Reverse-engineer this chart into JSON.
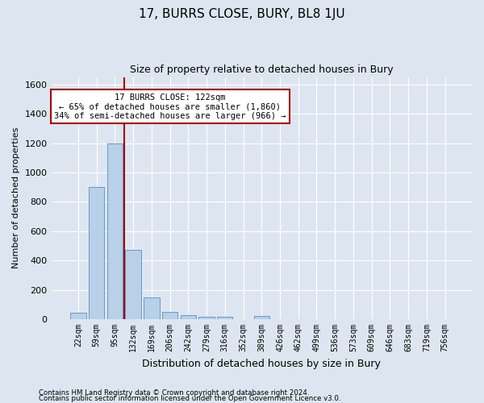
{
  "title": "17, BURRS CLOSE, BURY, BL8 1JU",
  "subtitle": "Size of property relative to detached houses in Bury",
  "xlabel": "Distribution of detached houses by size in Bury",
  "ylabel": "Number of detached properties",
  "footer_line1": "Contains HM Land Registry data © Crown copyright and database right 2024.",
  "footer_line2": "Contains public sector information licensed under the Open Government Licence v3.0.",
  "categories": [
    "22sqm",
    "59sqm",
    "95sqm",
    "132sqm",
    "169sqm",
    "206sqm",
    "242sqm",
    "279sqm",
    "316sqm",
    "352sqm",
    "389sqm",
    "426sqm",
    "462sqm",
    "499sqm",
    "536sqm",
    "573sqm",
    "609sqm",
    "646sqm",
    "683sqm",
    "719sqm",
    "756sqm"
  ],
  "values": [
    45,
    900,
    1200,
    470,
    150,
    48,
    30,
    15,
    18,
    0,
    20,
    0,
    0,
    0,
    0,
    0,
    0,
    0,
    0,
    0,
    0
  ],
  "bar_color": "#b8d0e8",
  "bar_edge_color": "#6699cc",
  "background_color": "#dde6f0",
  "grid_color": "#ffffff",
  "vline_x_idx": 2.5,
  "vline_color": "#aa0000",
  "annotation_line1": "17 BURRS CLOSE: 122sqm",
  "annotation_line2": "← 65% of detached houses are smaller (1,860)",
  "annotation_line3": "34% of semi-detached houses are larger (966) →",
  "annotation_box_color": "#ffffff",
  "annotation_box_edge": "#aa0000",
  "ylim": [
    0,
    1650
  ],
  "yticks": [
    0,
    200,
    400,
    600,
    800,
    1000,
    1200,
    1400,
    1600
  ]
}
